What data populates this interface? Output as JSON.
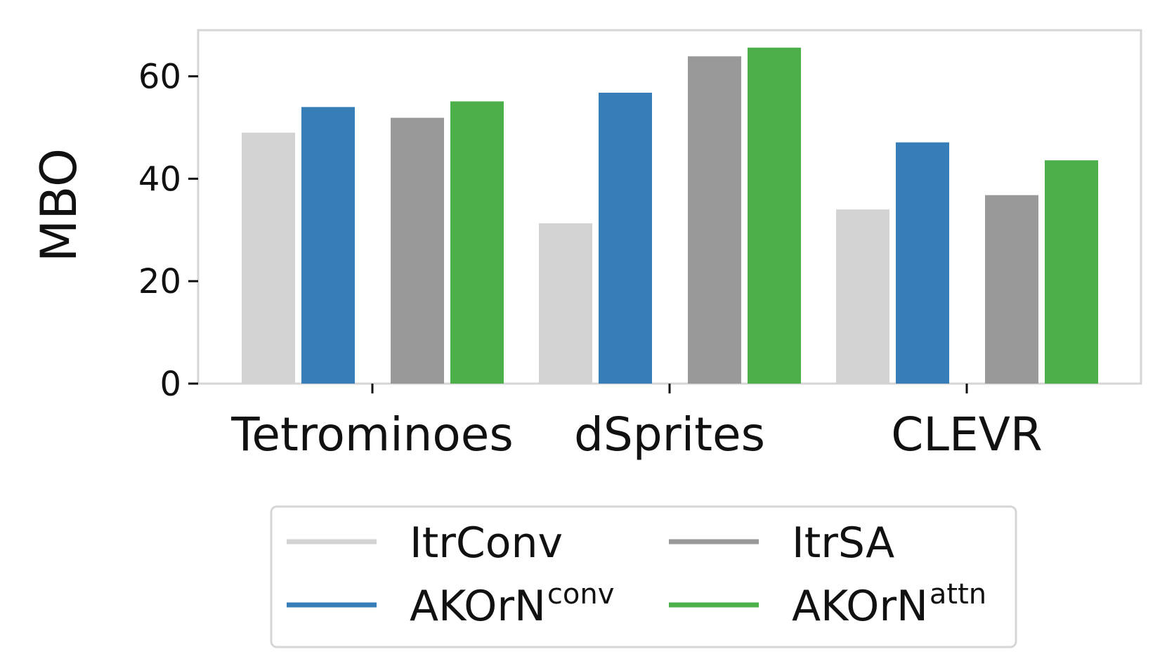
{
  "chart_data": {
    "type": "bar",
    "title": "",
    "xlabel": "",
    "ylabel": "MBO",
    "ylim": [
      0,
      69
    ],
    "yticks": [
      0,
      20,
      40,
      60
    ],
    "categories": [
      "Tetrominoes",
      "dSprites",
      "CLEVR"
    ],
    "grid": false,
    "legend_position": "bottom-center",
    "series": [
      {
        "name": "ItrConv",
        "base": "ItrConv",
        "sup": "",
        "color": "#d3d3d3",
        "values": [
          49,
          31.3,
          34
        ]
      },
      {
        "name": "AKOrNconv",
        "base": "AKOrN",
        "sup": "conv",
        "color": "#377eb8",
        "values": [
          54,
          56.8,
          47.1
        ]
      },
      {
        "name": "ItrSA",
        "base": "ItrSA",
        "sup": "",
        "color": "#999999",
        "values": [
          51.9,
          63.9,
          36.8
        ]
      },
      {
        "name": "AKOrNattn",
        "base": "AKOrN",
        "sup": "attn",
        "color": "#4daf4a",
        "values": [
          55.1,
          65.6,
          43.6
        ]
      }
    ]
  }
}
